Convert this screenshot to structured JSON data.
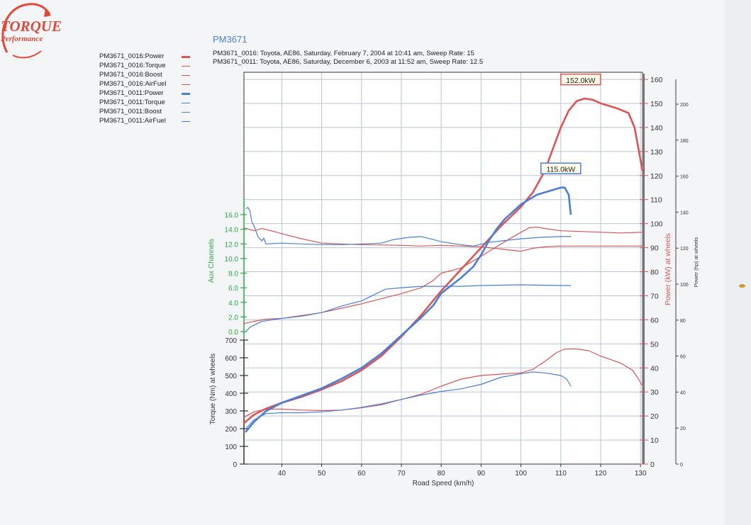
{
  "header": {
    "title": "PM3671",
    "runs": [
      "PM3671_0016: Toyota, AE86, Saturday, February 7, 2004  at  10:41 am,  Sweep Rate: 15",
      "PM3671_0011: Toyota, AE86, Saturday, December 6, 2003  at  11:52 am,  Sweep Rate: 12.5"
    ]
  },
  "logo": {
    "text": "TORQUE",
    "subtext": "Performance",
    "color": "#e04a3c"
  },
  "colors": {
    "run0016": "#dc5555",
    "run0011": "#4a7fd8",
    "aux_axis": "#2aa84a",
    "grid": "#b9c3dc"
  },
  "legend": [
    {
      "label": "PM3671_0016:Power",
      "color": "#dc5555",
      "bold": true
    },
    {
      "label": "PM3671_0016:Torque",
      "color": "#dc5555",
      "bold": false
    },
    {
      "label": "PM3671_0016:Boost",
      "color": "#dc5555",
      "bold": false
    },
    {
      "label": "PM3671_0016:AirFuel",
      "color": "#dc5555",
      "bold": false
    },
    {
      "label": "PM3671_0011:Power",
      "color": "#4a7fd8",
      "bold": true
    },
    {
      "label": "PM3671_0011:Torque",
      "color": "#4a7fd8",
      "bold": false
    },
    {
      "label": "PM3671_0011:Boost",
      "color": "#4a7fd8",
      "bold": false
    },
    {
      "label": "PM3671_0011:AirFuel",
      "color": "#4a7fd8",
      "bold": false
    }
  ],
  "chart_data": {
    "type": "line",
    "xlabel": "Road Speed (km/h)",
    "x_ticks": [
      40,
      50,
      60,
      70,
      80,
      90,
      100,
      110,
      120,
      130
    ],
    "xlim": [
      30.5,
      130.5
    ],
    "grid": true,
    "legend_position": "top-left",
    "axes": {
      "power_kw": {
        "label": "Power (kW) at wheels",
        "range": [
          0,
          160
        ],
        "ticks": [
          0,
          10,
          20,
          30,
          40,
          50,
          60,
          70,
          80,
          90,
          100,
          110,
          120,
          130,
          140,
          150,
          160
        ]
      },
      "power_hp": {
        "label": "Power (hp) at wheels",
        "range": [
          0,
          214
        ],
        "ticks": [
          0,
          20,
          40,
          60,
          80,
          100,
          120,
          140,
          160,
          180,
          200
        ]
      },
      "torque_nm": {
        "label": "Torque (Nm) at wheels",
        "range": [
          0,
          700
        ],
        "ticks": [
          0,
          100,
          200,
          300,
          400,
          500,
          600,
          700
        ]
      },
      "aux": {
        "label": "Aux Channels",
        "range": [
          0,
          17
        ],
        "ticks": [
          "0.0",
          "2.0",
          "4.0",
          "6.0",
          "8.0",
          "10.0",
          "12.0",
          "14.0",
          "16.0"
        ]
      }
    },
    "annotations": [
      {
        "text": "152.0kW",
        "x": 115,
        "y": 152,
        "series": "PM3671_0016:Power"
      },
      {
        "text": "115.0kW",
        "x": 110,
        "y": 115,
        "series": "PM3671_0011:Power"
      }
    ],
    "series": [
      {
        "name": "PM3671_0016:Power",
        "axis": "power_kw",
        "color": "#dc5555",
        "width": 2.6,
        "points": [
          [
            30.5,
            17
          ],
          [
            33,
            20.5
          ],
          [
            36,
            23
          ],
          [
            40,
            25.5
          ],
          [
            45,
            28
          ],
          [
            50,
            31
          ],
          [
            55,
            34.5
          ],
          [
            60,
            39
          ],
          [
            65,
            45
          ],
          [
            70,
            53
          ],
          [
            75,
            62
          ],
          [
            80,
            72
          ],
          [
            85,
            81
          ],
          [
            90,
            90
          ],
          [
            95,
            99
          ],
          [
            100,
            107
          ],
          [
            103,
            113
          ],
          [
            106,
            122
          ],
          [
            108,
            131
          ],
          [
            110,
            140
          ],
          [
            112,
            147
          ],
          [
            114,
            151
          ],
          [
            116,
            152
          ],
          [
            118,
            151.5
          ],
          [
            120,
            150
          ],
          [
            124,
            148
          ],
          [
            127,
            146
          ],
          [
            128.5,
            140
          ],
          [
            129.5,
            131
          ],
          [
            130.5,
            122
          ]
        ]
      },
      {
        "name": "PM3671_0016:Torque",
        "axis": "torque_nm",
        "color": "#dc5555",
        "width": 1.2,
        "points": [
          [
            30.5,
            265
          ],
          [
            33,
            295
          ],
          [
            36,
            310
          ],
          [
            40,
            310
          ],
          [
            45,
            305
          ],
          [
            50,
            302
          ],
          [
            55,
            305
          ],
          [
            60,
            318
          ],
          [
            65,
            335
          ],
          [
            70,
            365
          ],
          [
            75,
            395
          ],
          [
            80,
            440
          ],
          [
            85,
            480
          ],
          [
            90,
            500
          ],
          [
            95,
            508
          ],
          [
            100,
            515
          ],
          [
            103,
            535
          ],
          [
            106,
            580
          ],
          [
            109,
            630
          ],
          [
            111,
            650
          ],
          [
            114,
            650
          ],
          [
            117,
            640
          ],
          [
            120,
            610
          ],
          [
            125,
            570
          ],
          [
            128,
            530
          ],
          [
            129.5,
            480
          ],
          [
            130.5,
            440
          ]
        ]
      },
      {
        "name": "PM3671_0016:Boost",
        "axis": "aux",
        "color": "#dc5555",
        "width": 1.2,
        "points": [
          [
            30.5,
            1.1
          ],
          [
            33,
            1.4
          ],
          [
            36,
            1.7
          ],
          [
            40,
            1.8
          ],
          [
            45,
            2.2
          ],
          [
            50,
            2.6
          ],
          [
            55,
            3.2
          ],
          [
            60,
            3.8
          ],
          [
            65,
            4.5
          ],
          [
            70,
            5.2
          ],
          [
            75,
            6
          ],
          [
            78,
            7
          ],
          [
            80,
            8
          ],
          [
            85,
            8.7
          ],
          [
            90,
            10.3
          ],
          [
            95,
            12
          ],
          [
            100,
            13.6
          ],
          [
            102,
            14.2
          ],
          [
            104,
            14.3
          ],
          [
            106,
            14.1
          ],
          [
            110,
            13.8
          ],
          [
            115,
            13.7
          ],
          [
            120,
            13.6
          ],
          [
            125,
            13.5
          ],
          [
            130.5,
            13.6
          ]
        ]
      },
      {
        "name": "PM3671_0016:AirFuel",
        "axis": "aux",
        "color": "#dc5555",
        "width": 1.2,
        "points": [
          [
            30.5,
            14.2
          ],
          [
            33,
            13.8
          ],
          [
            35,
            14.1
          ],
          [
            38,
            13.7
          ],
          [
            40,
            13.4
          ],
          [
            45,
            12.7
          ],
          [
            50,
            12.1
          ],
          [
            55,
            12
          ],
          [
            60,
            11.9
          ],
          [
            70,
            11.8
          ],
          [
            75,
            11.7
          ],
          [
            80,
            11.8
          ],
          [
            85,
            11.7
          ],
          [
            90,
            11.6
          ],
          [
            95,
            11.3
          ],
          [
            100,
            11
          ],
          [
            103,
            11.4
          ],
          [
            106,
            11.6
          ],
          [
            110,
            11.7
          ],
          [
            120,
            11.7
          ],
          [
            130.5,
            11.7
          ]
        ]
      },
      {
        "name": "PM3671_0011:Power",
        "axis": "power_kw",
        "color": "#4a7fd8",
        "width": 2.6,
        "points": [
          [
            31,
            13.5
          ],
          [
            33,
            17.5
          ],
          [
            36,
            22
          ],
          [
            40,
            25.5
          ],
          [
            45,
            28.5
          ],
          [
            50,
            31.5
          ],
          [
            55,
            35.5
          ],
          [
            60,
            40
          ],
          [
            65,
            46
          ],
          [
            70,
            53.5
          ],
          [
            75,
            61
          ],
          [
            78,
            66
          ],
          [
            80,
            71
          ],
          [
            85,
            77.5
          ],
          [
            88,
            82
          ],
          [
            90,
            87
          ],
          [
            92,
            93
          ],
          [
            94,
            98
          ],
          [
            96,
            102
          ],
          [
            98,
            105
          ],
          [
            100,
            108
          ],
          [
            102,
            110
          ],
          [
            104,
            112
          ],
          [
            106,
            113
          ],
          [
            108,
            114
          ],
          [
            110,
            115
          ],
          [
            111,
            115
          ],
          [
            112,
            112
          ],
          [
            112.5,
            104
          ]
        ]
      },
      {
        "name": "PM3671_0011:Torque",
        "axis": "torque_nm",
        "color": "#4a7fd8",
        "width": 1.2,
        "points": [
          [
            31,
            200
          ],
          [
            33,
            250
          ],
          [
            36,
            285
          ],
          [
            40,
            290
          ],
          [
            45,
            290
          ],
          [
            50,
            295
          ],
          [
            55,
            305
          ],
          [
            60,
            320
          ],
          [
            65,
            340
          ],
          [
            70,
            365
          ],
          [
            75,
            390
          ],
          [
            80,
            410
          ],
          [
            85,
            425
          ],
          [
            90,
            450
          ],
          [
            95,
            490
          ],
          [
            100,
            510
          ],
          [
            103,
            520
          ],
          [
            106,
            515
          ],
          [
            110,
            500
          ],
          [
            111.5,
            480
          ],
          [
            112.5,
            440
          ]
        ]
      },
      {
        "name": "PM3671_0011:Boost",
        "axis": "aux",
        "color": "#4a7fd8",
        "width": 1.2,
        "points": [
          [
            31,
            0
          ],
          [
            32,
            0.6
          ],
          [
            35,
            1.4
          ],
          [
            40,
            1.8
          ],
          [
            45,
            2.1
          ],
          [
            50,
            2.6
          ],
          [
            55,
            3.5
          ],
          [
            60,
            4.2
          ],
          [
            63,
            5
          ],
          [
            66,
            5.8
          ],
          [
            70,
            6
          ],
          [
            75,
            6.2
          ],
          [
            80,
            6.2
          ],
          [
            85,
            6.2
          ],
          [
            90,
            6.3
          ],
          [
            100,
            6.4
          ],
          [
            110,
            6.3
          ],
          [
            112.5,
            6.3
          ]
        ]
      },
      {
        "name": "PM3671_0011:AirFuel",
        "axis": "aux",
        "color": "#4a7fd8",
        "width": 1.2,
        "points": [
          [
            31,
            16.8
          ],
          [
            31.5,
            17
          ],
          [
            32,
            16.5
          ],
          [
            32.5,
            15
          ],
          [
            33,
            14.5
          ],
          [
            34,
            13
          ],
          [
            35,
            12.4
          ],
          [
            35.5,
            12.8
          ],
          [
            36,
            12
          ],
          [
            40,
            12.1
          ],
          [
            45,
            12
          ],
          [
            50,
            11.9
          ],
          [
            55,
            11.9
          ],
          [
            60,
            12
          ],
          [
            65,
            12.1
          ],
          [
            68,
            12.6
          ],
          [
            72,
            12.9
          ],
          [
            75,
            13
          ],
          [
            78,
            12.6
          ],
          [
            80,
            12.3
          ],
          [
            85,
            11.9
          ],
          [
            88,
            11.7
          ],
          [
            92,
            12.2
          ],
          [
            95,
            12.4
          ],
          [
            100,
            12.7
          ],
          [
            105,
            12.9
          ],
          [
            110,
            13
          ],
          [
            112.5,
            13
          ]
        ]
      }
    ]
  }
}
